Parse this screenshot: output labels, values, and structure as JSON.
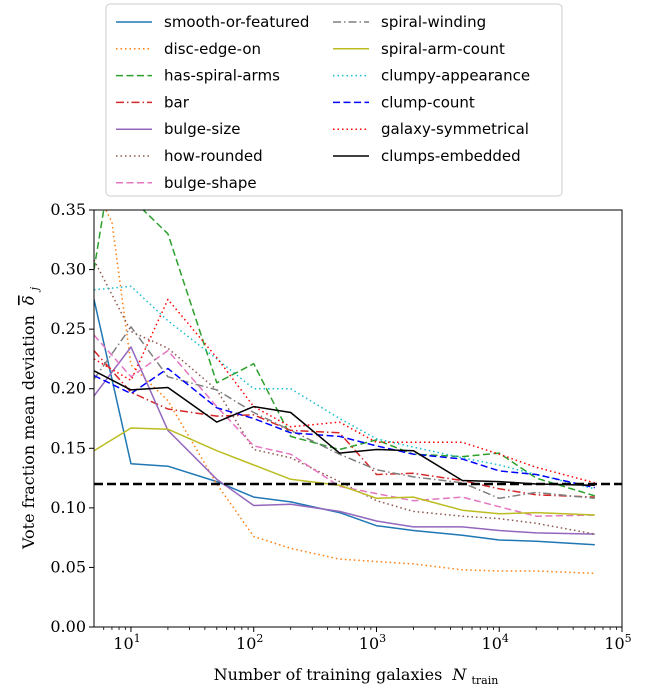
{
  "chart_data": {
    "type": "line",
    "xlabel": "Number of training galaxies",
    "xlabel_math_base": "N",
    "xlabel_math_sub": "train",
    "ylabel": "Vote fraction mean deviation",
    "ylabel_math_base": "δ",
    "ylabel_math_sub": "j",
    "xscale": "log",
    "xlim": [
      5,
      100000
    ],
    "ylim": [
      0,
      0.35
    ],
    "yticks": [
      "0.00",
      "0.05",
      "0.10",
      "0.15",
      "0.20",
      "0.25",
      "0.30",
      "0.35"
    ],
    "yticks_values": [
      0,
      0.05,
      0.1,
      0.15,
      0.2,
      0.25,
      0.3,
      0.35
    ],
    "xticks": [
      {
        "value": 10,
        "base": "10",
        "exp": "1"
      },
      {
        "value": 100,
        "base": "10",
        "exp": "2"
      },
      {
        "value": 1000,
        "base": "10",
        "exp": "3"
      },
      {
        "value": 10000,
        "base": "10",
        "exp": "4"
      },
      {
        "value": 100000,
        "base": "10",
        "exp": "5"
      }
    ],
    "hline": {
      "y": 0.12,
      "color": "#000000",
      "style": "dashed"
    },
    "legend_position": "top-center-outside",
    "grid": false,
    "series": [
      {
        "name": "smooth-or-featured",
        "color": "#1f77b4",
        "style": "solid",
        "x": [
          5,
          10,
          20,
          50,
          100,
          200,
          500,
          1000,
          2000,
          5000,
          10000,
          20000,
          60000
        ],
        "y": [
          0.275,
          0.137,
          0.135,
          0.122,
          0.109,
          0.105,
          0.096,
          0.085,
          0.081,
          0.077,
          0.073,
          0.072,
          0.069
        ]
      },
      {
        "name": "disc-edge-on",
        "color": "#ff7f0e",
        "style": "dotted",
        "x": [
          5,
          7,
          10,
          20,
          50,
          100,
          200,
          500,
          1000,
          2000,
          5000,
          10000,
          20000,
          60000
        ],
        "y": [
          0.37,
          0.34,
          0.22,
          0.19,
          0.12,
          0.076,
          0.066,
          0.057,
          0.055,
          0.053,
          0.048,
          0.047,
          0.047,
          0.045
        ]
      },
      {
        "name": "has-spiral-arms",
        "color": "#2ca02c",
        "style": "dashed",
        "x": [
          5,
          6,
          10,
          20,
          50,
          100,
          200,
          500,
          1000,
          2000,
          5000,
          10000,
          20000,
          60000
        ],
        "y": [
          0.3,
          0.35,
          0.36,
          0.33,
          0.205,
          0.221,
          0.16,
          0.149,
          0.157,
          0.145,
          0.143,
          0.146,
          0.125,
          0.11
        ]
      },
      {
        "name": "bar",
        "color": "#d62728",
        "style": "dashdot",
        "x": [
          5,
          10,
          20,
          50,
          100,
          200,
          500,
          1000,
          2000,
          5000,
          10000,
          20000,
          60000
        ],
        "y": [
          0.232,
          0.197,
          0.183,
          0.177,
          0.178,
          0.165,
          0.163,
          0.128,
          0.129,
          0.123,
          0.116,
          0.111,
          0.109
        ]
      },
      {
        "name": "bulge-size",
        "color": "#9467bd",
        "style": "solid",
        "x": [
          5,
          10,
          20,
          50,
          100,
          200,
          500,
          1000,
          2000,
          5000,
          10000,
          20000,
          60000
        ],
        "y": [
          0.194,
          0.235,
          0.165,
          0.124,
          0.102,
          0.103,
          0.097,
          0.089,
          0.084,
          0.084,
          0.081,
          0.079,
          0.078
        ]
      },
      {
        "name": "how-rounded",
        "color": "#8c564b",
        "style": "dotted",
        "x": [
          5,
          10,
          20,
          50,
          100,
          200,
          500,
          1000,
          2000,
          5000,
          10000,
          20000,
          60000
        ],
        "y": [
          0.308,
          0.248,
          0.234,
          0.199,
          0.149,
          0.142,
          0.122,
          0.106,
          0.097,
          0.093,
          0.091,
          0.087,
          0.078
        ]
      },
      {
        "name": "bulge-shape",
        "color": "#e377c2",
        "style": "dashed",
        "x": [
          5,
          10,
          20,
          50,
          100,
          200,
          500,
          1000,
          2000,
          5000,
          10000,
          20000,
          60000
        ],
        "y": [
          0.245,
          0.21,
          0.232,
          0.185,
          0.152,
          0.145,
          0.118,
          0.112,
          0.106,
          0.109,
          0.101,
          0.093,
          0.094
        ]
      },
      {
        "name": "spiral-winding",
        "color": "#7f7f7f",
        "style": "dashdot",
        "x": [
          5,
          10,
          20,
          50,
          100,
          200,
          500,
          1000,
          2000,
          5000,
          10000,
          20000,
          60000
        ],
        "y": [
          0.208,
          0.252,
          0.21,
          0.199,
          0.18,
          0.165,
          0.145,
          0.132,
          0.126,
          0.121,
          0.108,
          0.113,
          0.108
        ]
      },
      {
        "name": "spiral-arm-count",
        "color": "#bcbd22",
        "style": "solid",
        "x": [
          5,
          10,
          20,
          50,
          100,
          200,
          500,
          1000,
          2000,
          5000,
          10000,
          20000,
          60000
        ],
        "y": [
          0.148,
          0.167,
          0.166,
          0.148,
          0.136,
          0.124,
          0.119,
          0.108,
          0.109,
          0.098,
          0.095,
          0.096,
          0.094
        ]
      },
      {
        "name": "clumpy-appearance",
        "color": "#17becf",
        "style": "dotted",
        "x": [
          5,
          10,
          20,
          50,
          100,
          200,
          500,
          1000,
          2000,
          5000,
          10000,
          20000,
          60000
        ],
        "y": [
          0.283,
          0.286,
          0.257,
          0.225,
          0.2,
          0.2,
          0.175,
          0.158,
          0.151,
          0.142,
          0.136,
          0.128,
          0.116
        ]
      },
      {
        "name": "clump-count",
        "color": "#0000ff",
        "style": "dashed",
        "x": [
          5,
          10,
          20,
          50,
          100,
          200,
          500,
          1000,
          2000,
          5000,
          10000,
          20000,
          60000
        ],
        "y": [
          0.211,
          0.196,
          0.217,
          0.184,
          0.175,
          0.163,
          0.16,
          0.152,
          0.145,
          0.141,
          0.131,
          0.128,
          0.117
        ]
      },
      {
        "name": "galaxy-symmetrical",
        "color": "#ff0000",
        "style": "dotted",
        "x": [
          5,
          10,
          20,
          50,
          100,
          200,
          500,
          1000,
          2000,
          5000,
          10000,
          20000,
          60000
        ],
        "y": [
          0.225,
          0.207,
          0.275,
          0.226,
          0.185,
          0.168,
          0.172,
          0.155,
          0.155,
          0.155,
          0.145,
          0.134,
          0.121
        ]
      },
      {
        "name": "clumps-embedded",
        "color": "#000000",
        "style": "solid",
        "x": [
          5,
          10,
          20,
          50,
          100,
          200,
          500,
          1000,
          2000,
          5000,
          10000,
          20000,
          60000
        ],
        "y": [
          0.215,
          0.199,
          0.201,
          0.172,
          0.185,
          0.18,
          0.146,
          0.149,
          0.148,
          0.123,
          0.122,
          0.12,
          0.119
        ]
      }
    ]
  }
}
